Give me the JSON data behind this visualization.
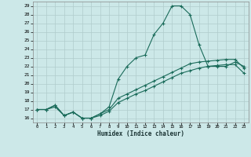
{
  "xlabel": "Humidex (Indice chaleur)",
  "bg_color": "#cce8e8",
  "line_color": "#1a6b5a",
  "grid_color": "#b0cccc",
  "x_ticks": [
    0,
    1,
    2,
    3,
    4,
    5,
    6,
    7,
    8,
    9,
    10,
    11,
    12,
    13,
    14,
    15,
    16,
    17,
    18,
    19,
    20,
    21,
    22,
    23
  ],
  "y_ticks": [
    16,
    17,
    18,
    19,
    20,
    21,
    22,
    23,
    24,
    25,
    26,
    27,
    28,
    29
  ],
  "xlim": [
    -0.5,
    23.5
  ],
  "ylim": [
    15.5,
    29.5
  ],
  "series1_x": [
    0,
    1,
    2,
    3,
    4,
    5,
    6,
    7,
    8,
    9,
    10,
    11,
    12,
    13,
    14,
    15,
    16,
    17,
    18,
    19,
    20,
    21,
    22,
    23
  ],
  "series1_y": [
    17,
    17,
    17.5,
    16.3,
    16.7,
    16,
    16,
    16.5,
    17.3,
    20.5,
    22,
    23,
    23.3,
    25.7,
    27,
    29,
    29,
    28,
    24.5,
    22,
    22,
    22,
    22.5,
    22
  ],
  "series2_x": [
    0,
    1,
    2,
    3,
    4,
    5,
    6,
    7,
    8,
    9,
    10,
    11,
    12,
    13,
    14,
    15,
    16,
    17,
    18,
    19,
    20,
    21,
    22,
    23
  ],
  "series2_y": [
    17,
    17,
    17.5,
    16.3,
    16.7,
    16,
    16,
    16.5,
    17,
    18.3,
    18.8,
    19.3,
    19.8,
    20.3,
    20.8,
    21.3,
    21.8,
    22.3,
    22.5,
    22.6,
    22.7,
    22.8,
    22.8,
    21.8
  ],
  "series3_x": [
    0,
    1,
    2,
    3,
    4,
    5,
    6,
    7,
    8,
    9,
    10,
    11,
    12,
    13,
    14,
    15,
    16,
    17,
    18,
    19,
    20,
    21,
    22,
    23
  ],
  "series3_y": [
    17,
    17,
    17.3,
    16.3,
    16.7,
    16,
    16,
    16.3,
    16.8,
    17.8,
    18.3,
    18.8,
    19.2,
    19.7,
    20.2,
    20.7,
    21.2,
    21.5,
    21.8,
    22.0,
    22.1,
    22.2,
    22.2,
    21.2
  ]
}
